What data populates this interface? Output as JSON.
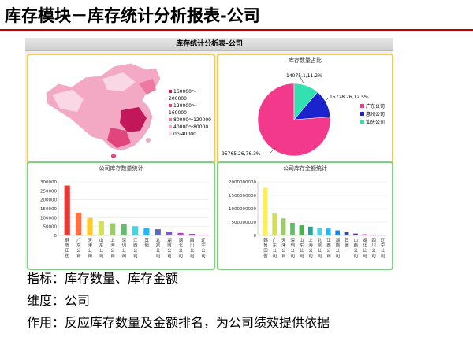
{
  "slide": {
    "title": "库存模块－库存统计分析报表-公司"
  },
  "dashboard": {
    "title": "库存统计分析表-公司"
  },
  "map": {
    "legend": [
      {
        "label": "160000～200000",
        "color": "#c2185b"
      },
      {
        "label": "120000～160000",
        "color": "#e0457b"
      },
      {
        "label": "80000～120000",
        "color": "#ec79a0"
      },
      {
        "label": "40000～80000",
        "color": "#f3a9c4"
      },
      {
        "label": "0～40000",
        "color": "#f9d7e4"
      }
    ]
  },
  "pie": {
    "title": "库存数量占比",
    "slices": [
      {
        "name": "广东公司",
        "value": 95765.26,
        "percent": 76.3,
        "label": "95765.26,76.3%",
        "color": "#f2398c"
      },
      {
        "name": "惠州公司",
        "value": 15728.26,
        "percent": 12.5,
        "label": "15728.26,12.5%",
        "color": "#1a23cc"
      },
      {
        "name": "汕头公司",
        "value": 14075.1,
        "percent": 11.2,
        "label": "14075.1,11.2%",
        "color": "#33e0b0"
      }
    ]
  },
  "chart_data": [
    {
      "type": "bar",
      "title": "公司库存数量统计",
      "categories": [
        "韩鲁田街",
        "广东公司",
        "天津公司",
        "山东公司",
        "上海公司",
        "深圳公司",
        "江西公司",
        "其他",
        "北京公司",
        "湖南公司",
        "湖北公司",
        "四川公司",
        "辽宁公司"
      ],
      "values": [
        280000,
        128000,
        98000,
        82000,
        68000,
        62000,
        52000,
        40000,
        35000,
        22000,
        14000,
        8000,
        3000
      ],
      "colors": [
        "#e53935",
        "#ff7043",
        "#ffca28",
        "#d4e157",
        "#9ccc65",
        "#66bb6a",
        "#4dd0e1",
        "#29b6f6",
        "#5c6bc0",
        "#7e57c2",
        "#ab47bc",
        "#8e24aa",
        "#6a1b9a"
      ],
      "yticks": [
        "0",
        "50000",
        "100000",
        "150000",
        "200000",
        "250000",
        "300000"
      ],
      "ylim": [
        0,
        300000
      ]
    },
    {
      "type": "bar",
      "title": "公司库存金额统计",
      "categories": [
        "韩鲁田街",
        "广东公司",
        "天津公司",
        "深圳公司",
        "山东公司",
        "上海公司",
        "北京公司",
        "江西公司",
        "湖南公司",
        "其他",
        "山西公司",
        "湖北公司",
        "四川公司",
        "辽宁公司"
      ],
      "values": [
        1780000000,
        820000000,
        640000000,
        470000000,
        380000000,
        330000000,
        290000000,
        260000000,
        190000000,
        120000000,
        70000000,
        40000000,
        20000000,
        8000000
      ],
      "colors": [
        "#ffee58",
        "#d4e157",
        "#9ccc65",
        "#66bb6a",
        "#4caf50",
        "#26a69a",
        "#4dd0e1",
        "#29b6f6",
        "#1e88e5",
        "#3949ab",
        "#5e35b1",
        "#8e24aa",
        "#ab47bc",
        "#ce93d8"
      ],
      "yticks": [
        "0",
        "500000000",
        "1000000000",
        "1500000000",
        "2000000000"
      ],
      "ylim": [
        0,
        2000000000
      ]
    }
  ],
  "desc": [
    "指标：库存数量、库存金额",
    "维度：公司",
    "作用：反应库存数量及金额排名，为公司绩效提供依据"
  ]
}
